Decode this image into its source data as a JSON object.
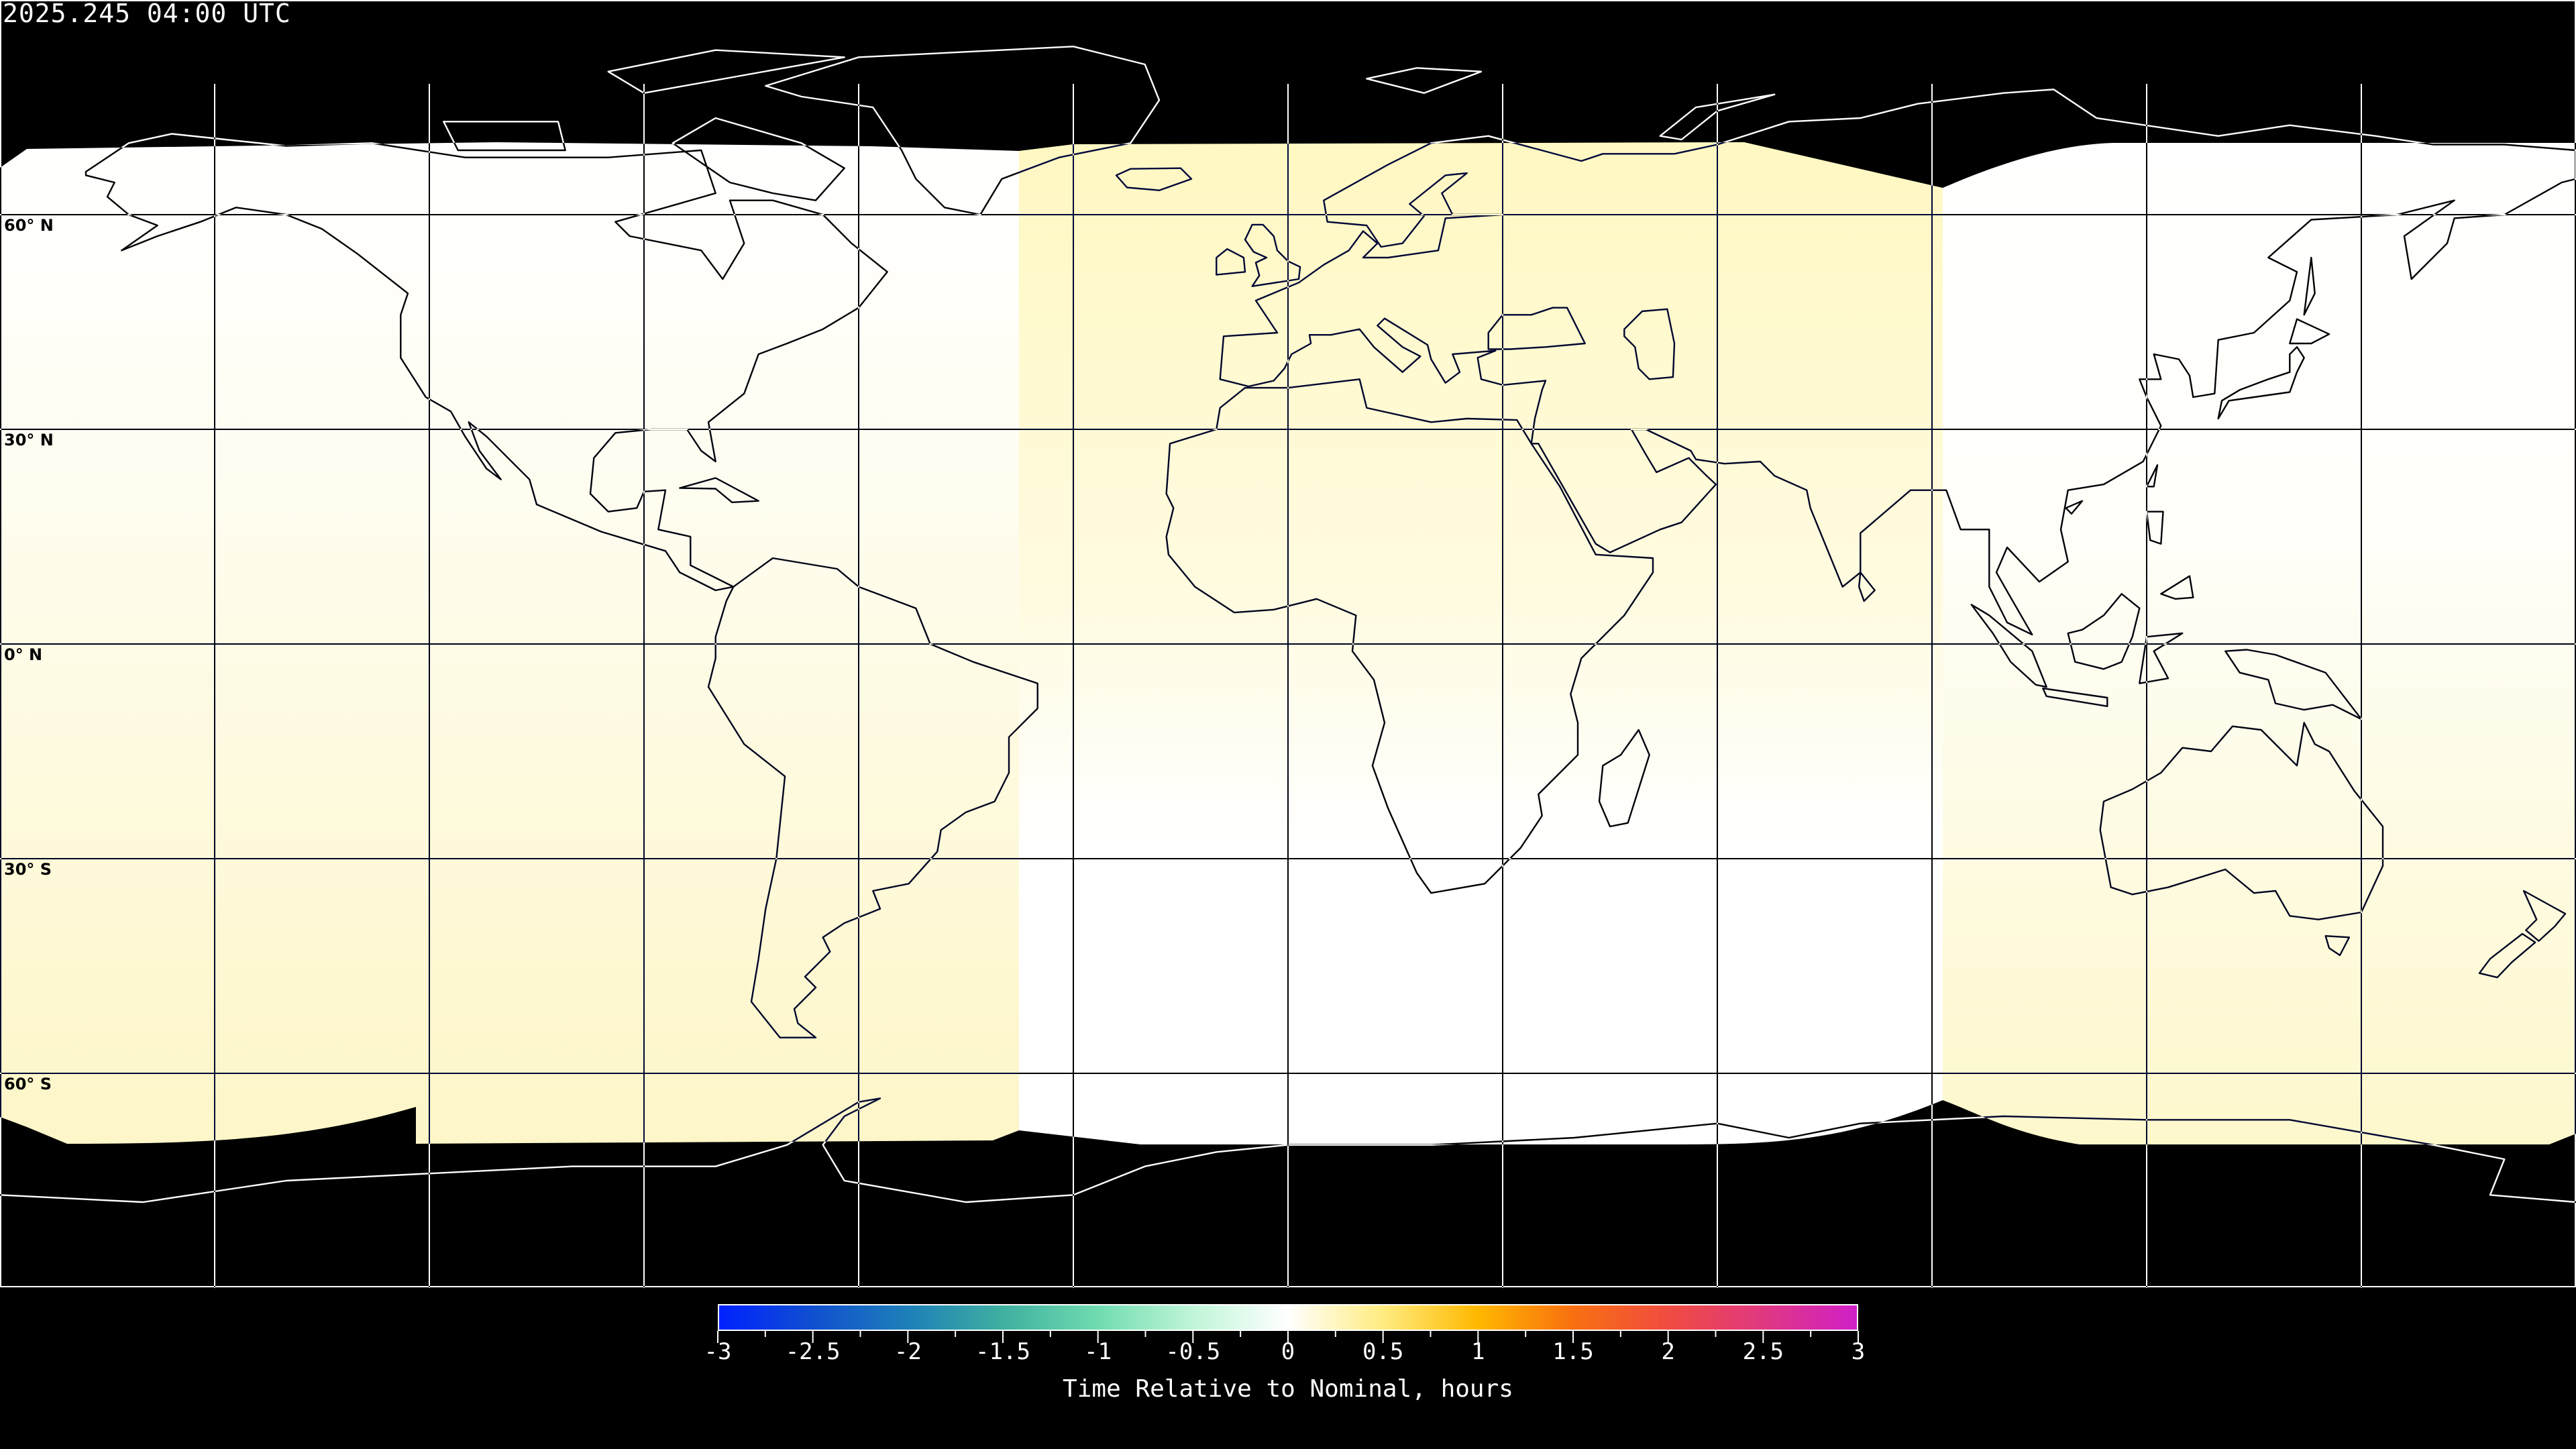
{
  "title": "2025.245 04:00 UTC",
  "map": {
    "projection": "equirectangular",
    "lon_range": [
      -180,
      180
    ],
    "lat_range": [
      -90,
      90
    ],
    "grid_spacing_lon": 30,
    "grid_spacing_lat": 30,
    "lat_labels": [
      "60° N",
      "30° N",
      "0° N",
      "30° S",
      "60° S"
    ],
    "background_color": "#000000",
    "coastline_color_on_data": "#000000",
    "coastline_color_on_nodata": "#ffffff"
  },
  "colorbar": {
    "min": -3,
    "max": 3,
    "tick_labels": [
      "-3",
      "-2.5",
      "-2",
      "-1.5",
      "-1",
      "-0.5",
      "0",
      "0.5",
      "1",
      "1.5",
      "2",
      "2.5",
      "3"
    ],
    "label": "Time Relative to Nominal, hours",
    "colors": [
      "#0022ff",
      "#1050d0",
      "#1e80b8",
      "#40b0a0",
      "#70dcb0",
      "#c0f5d8",
      "#ffffff",
      "#ffec80",
      "#ffb800",
      "#f87010",
      "#f04c40",
      "#e03880",
      "#d020c8"
    ]
  }
}
